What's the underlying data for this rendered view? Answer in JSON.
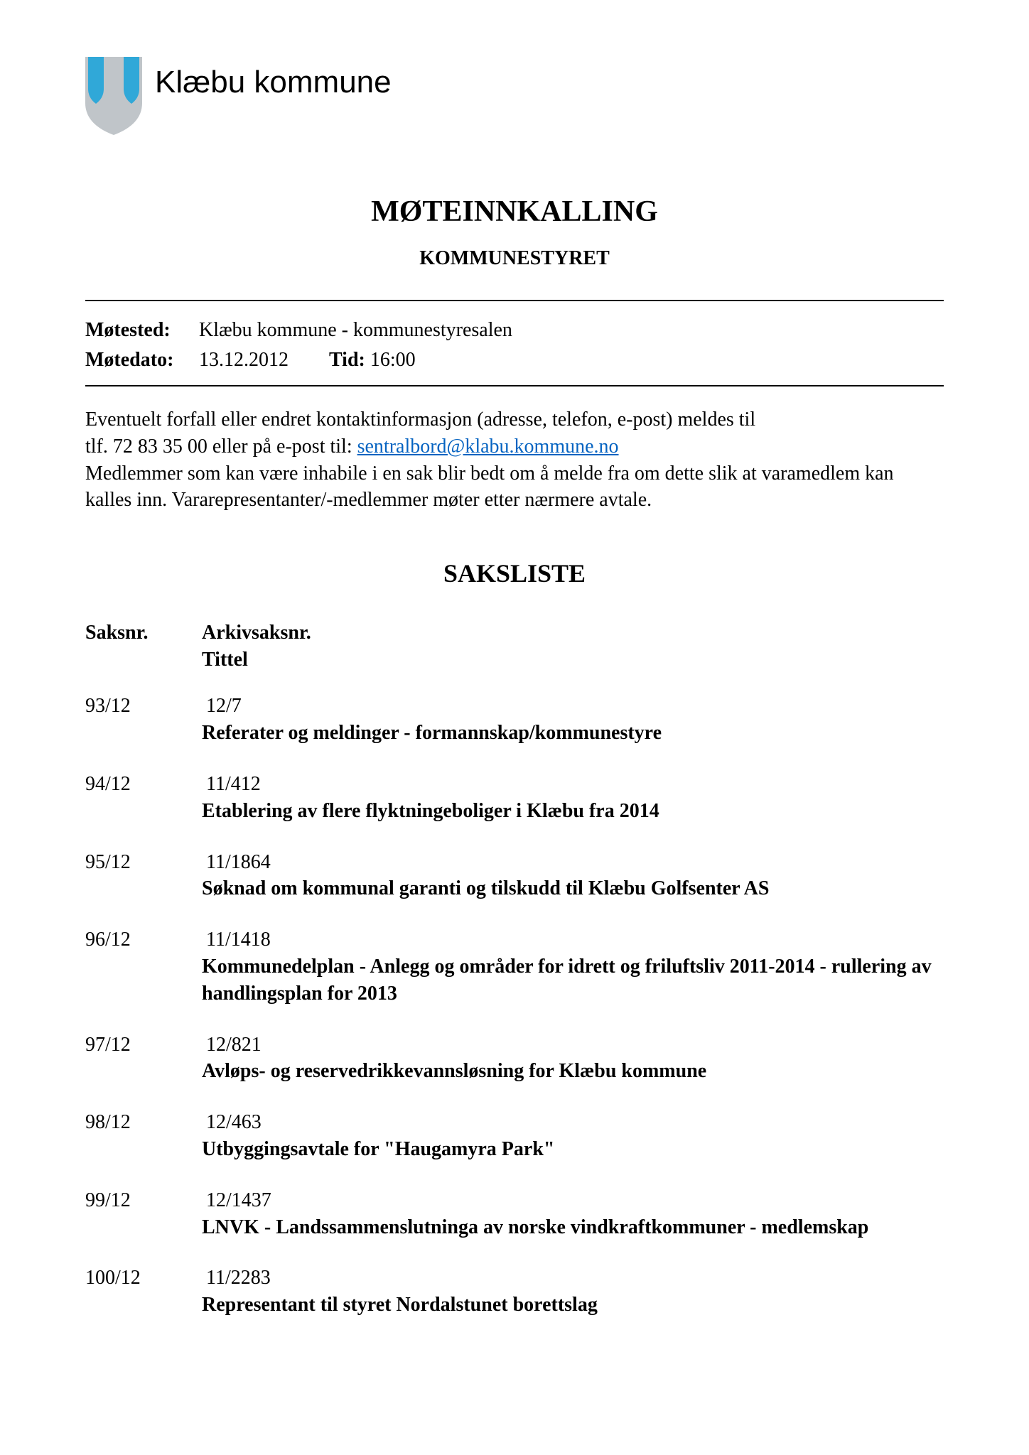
{
  "org_name": "Klæbu kommune",
  "logo": {
    "shield_fill": "#c0c5c9",
    "accent_fill": "#30a8d8"
  },
  "doc_title": "MØTEINNKALLING",
  "doc_subtitle": "KOMMUNESTYRET",
  "meeting": {
    "place_label": "Møtested:",
    "place_value": "Klæbu kommune - kommunestyresalen",
    "date_label": "Møtedato:",
    "date_value": "13.12.2012",
    "time_label": "Tid:",
    "time_value": "16:00"
  },
  "notice": {
    "line1": "Eventuelt forfall eller endret kontaktinformasjon (adresse, telefon, e-post) meldes til",
    "line2a": "tlf. 72 83 35 00 eller på e-post til: ",
    "email": "sentralbord@klabu.kommune.no",
    "line3": "Medlemmer som kan være inhabile i en sak blir bedt om å melde fra om dette slik at varamedlem kan kalles inn. Vararepresentanter/-medlemmer møter etter nærmere avtale."
  },
  "saksliste_title": "SAKSLISTE",
  "saks_header": {
    "saksnr": "Saksnr.",
    "arkiv": "Arkivsaksnr.",
    "tittel": "Tittel"
  },
  "saker": [
    {
      "saksnr": "93/12",
      "arkiv": "12/7",
      "tittel": "Referater og meldinger - formannskap/kommunestyre"
    },
    {
      "saksnr": "94/12",
      "arkiv": "11/412",
      "tittel": "Etablering av flere flyktningeboliger i Klæbu fra 2014"
    },
    {
      "saksnr": "95/12",
      "arkiv": "11/1864",
      "tittel": "Søknad om kommunal garanti og tilskudd til Klæbu Golfsenter AS"
    },
    {
      "saksnr": "96/12",
      "arkiv": "11/1418",
      "tittel": "Kommunedelplan - Anlegg og områder for idrett og friluftsliv 2011-2014 - rullering av handlingsplan for 2013"
    },
    {
      "saksnr": "97/12",
      "arkiv": "12/821",
      "tittel": "Avløps- og reservedrikkevannsløsning for Klæbu kommune"
    },
    {
      "saksnr": "98/12",
      "arkiv": "12/463",
      "tittel": "Utbyggingsavtale for \"Haugamyra Park\""
    },
    {
      "saksnr": "99/12",
      "arkiv": "12/1437",
      "tittel": "LNVK - Landssammenslutninga av norske vindkraftkommuner - medlemskap"
    },
    {
      "saksnr": "100/12",
      "arkiv": "11/2283",
      "tittel": "Representant til styret Nordalstunet borettslag"
    }
  ]
}
